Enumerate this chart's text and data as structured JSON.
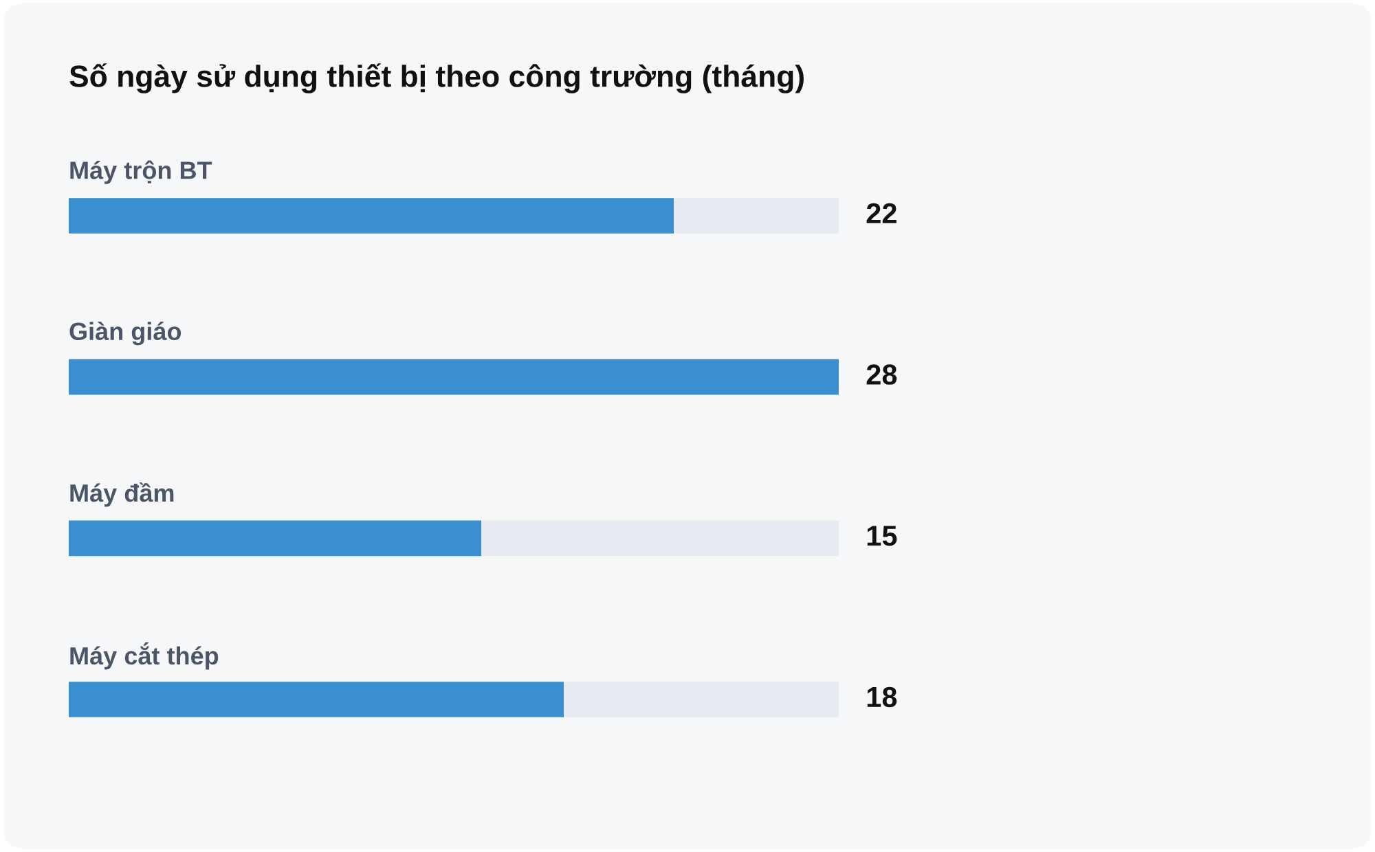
{
  "chart_data": {
    "type": "bar",
    "orientation": "horizontal",
    "title": "Số ngày sử dụng thiết bị theo công trường (tháng)",
    "categories": [
      "Máy trộn BT",
      "Giàn giáo",
      "Máy đầm",
      "Máy cắt thép"
    ],
    "values": [
      22,
      28,
      15,
      18
    ],
    "color": "#3a8fd0",
    "data_labels": true
  }
}
